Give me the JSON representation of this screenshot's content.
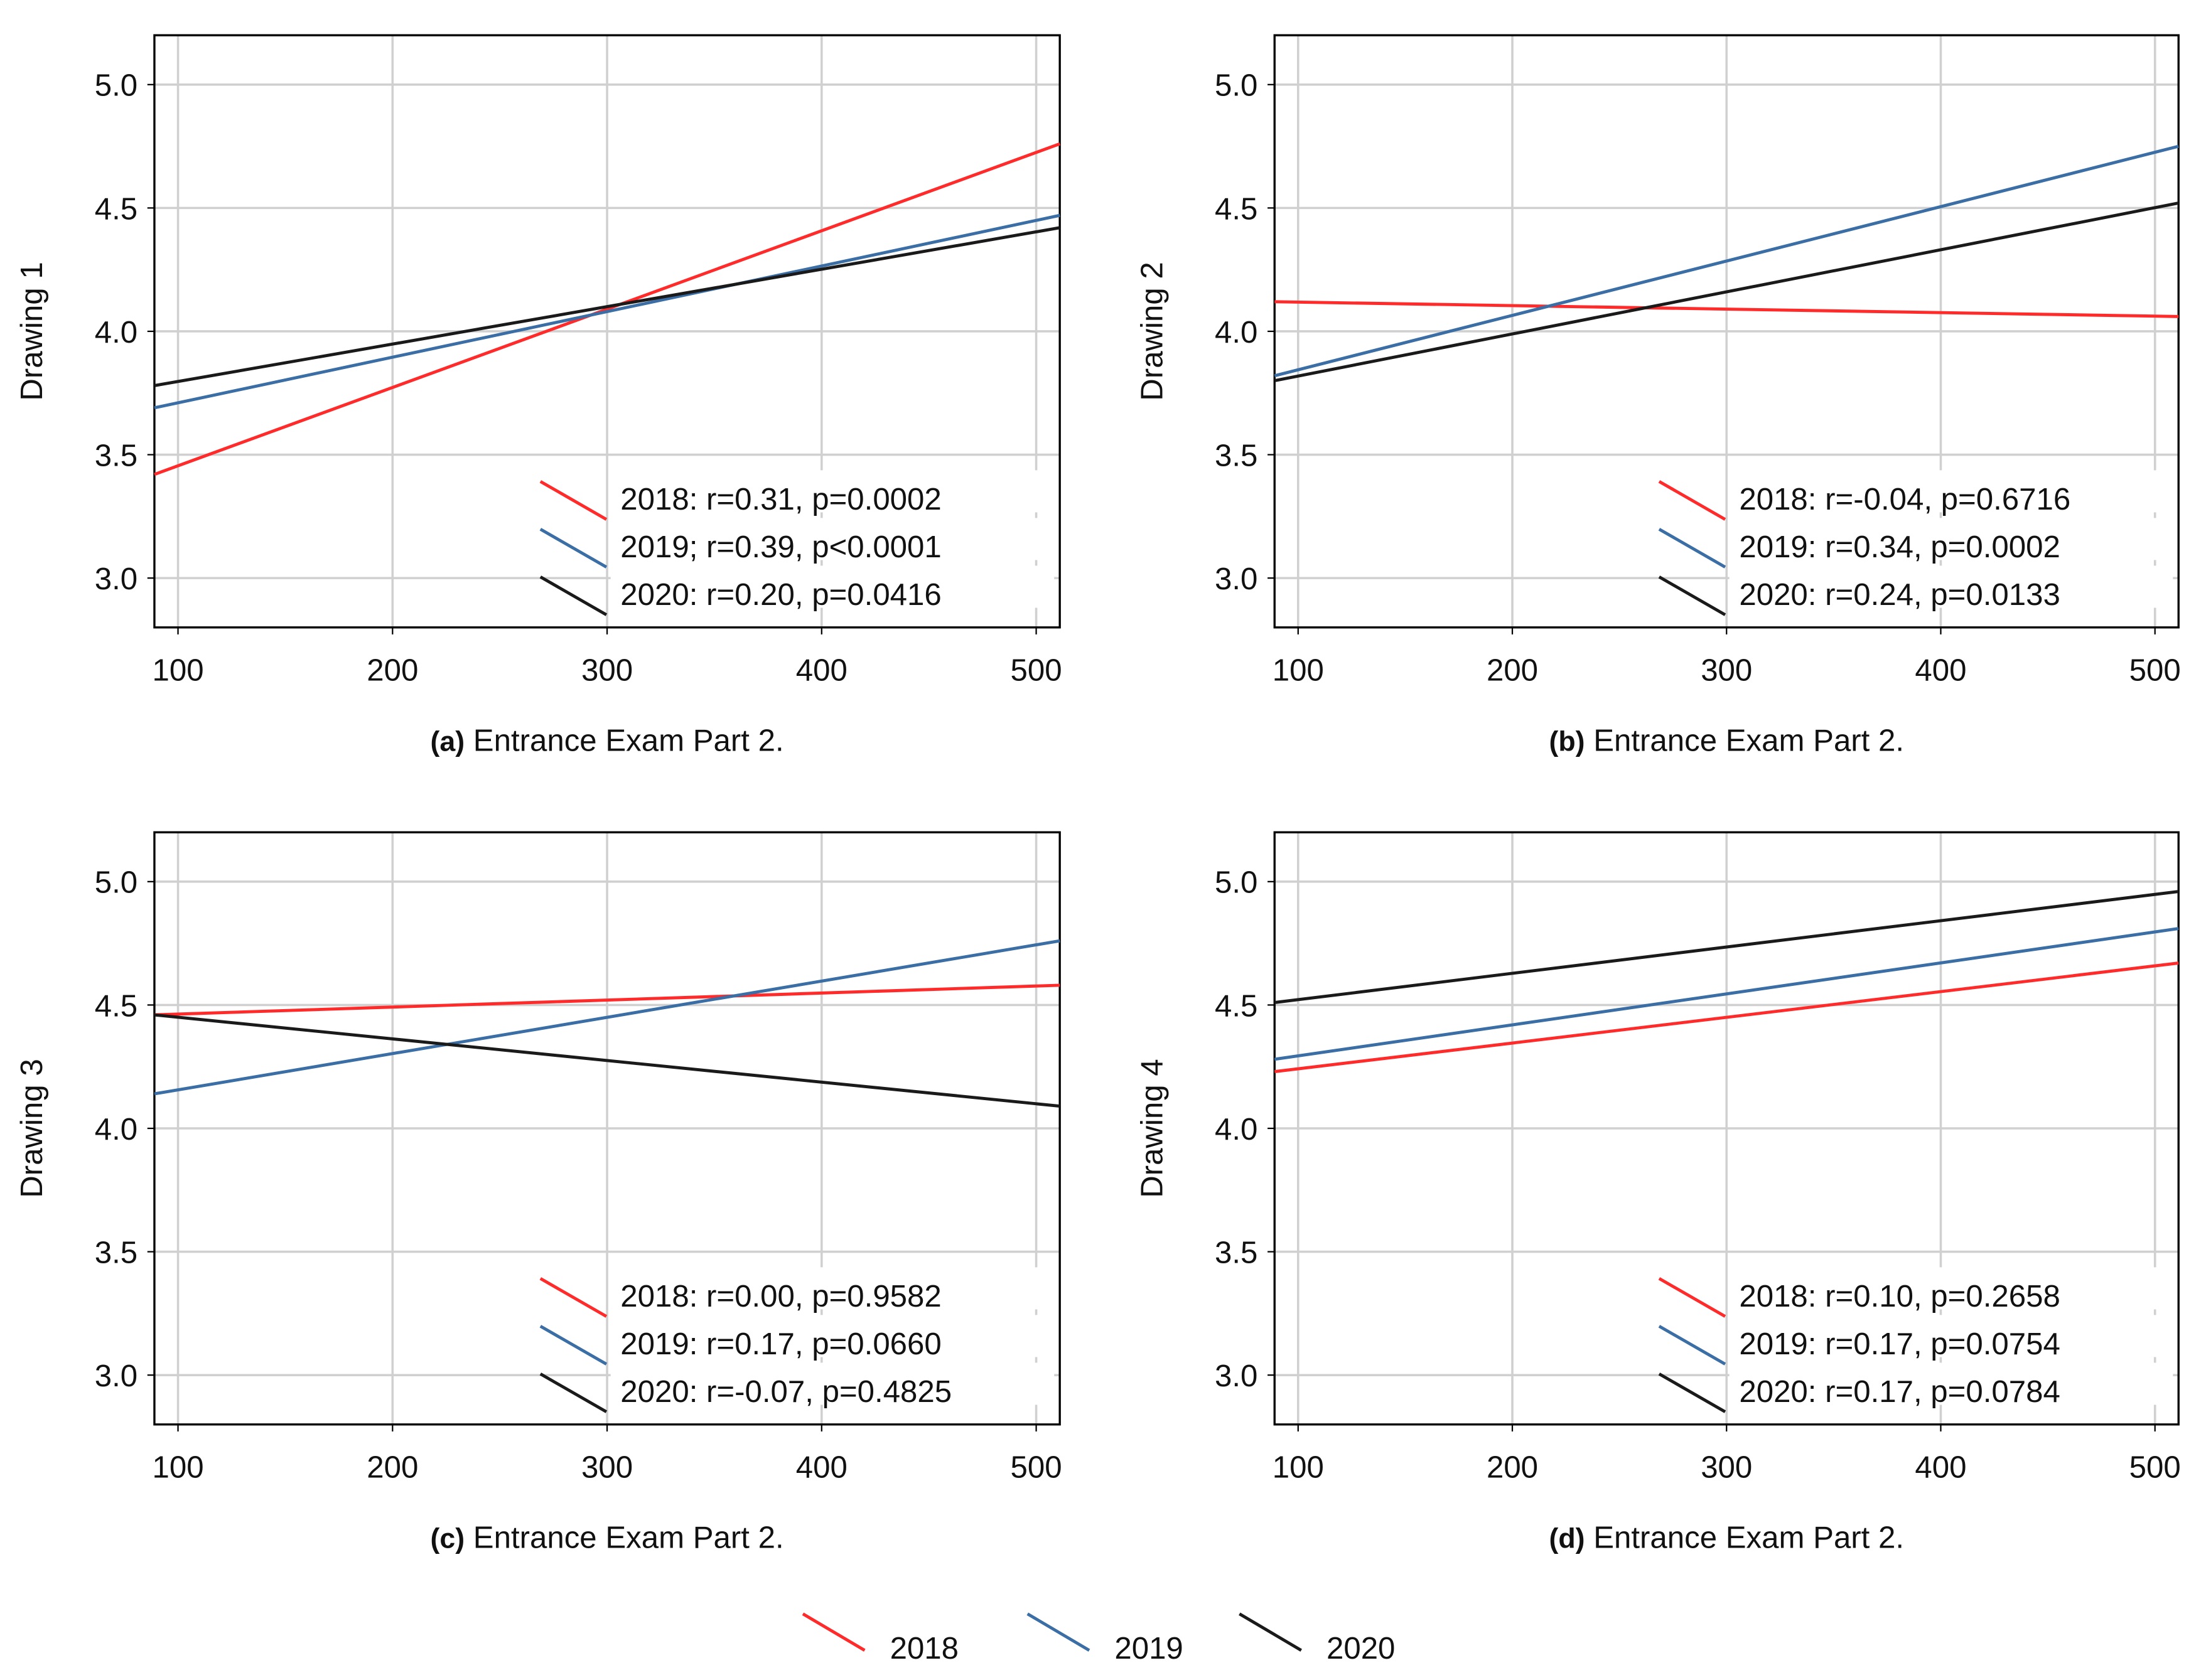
{
  "chart_data": [
    {
      "type": "line",
      "panel_label": "(a)",
      "xlabel": "Entrance Exam Part 2.",
      "ylabel": "Drawing 1",
      "x": [
        89,
        511
      ],
      "xlim": [
        89,
        511
      ],
      "ylim": [
        2.8,
        5.2
      ],
      "xticks": [
        100,
        200,
        300,
        400,
        500
      ],
      "yticks": [
        {
          "value": 3,
          "label": "3.0"
        },
        3.5,
        {
          "value": 4,
          "label": "4.0"
        },
        4.5,
        {
          "value": 5,
          "label": "5.0"
        }
      ],
      "grid": true,
      "legend_position": "lower right",
      "series": [
        {
          "name": "2018: r=0.31, p=0.0002",
          "color": "#ff2a2a",
          "values": [
            3.42,
            4.76
          ]
        },
        {
          "name": "2019; r=0.39, p<0.0001",
          "color": "#3a6ea5",
          "values": [
            3.69,
            4.47
          ]
        },
        {
          "name": "2020: r=0.20, p=0.0416",
          "color": "#1a1a1a",
          "values": [
            3.78,
            4.42
          ]
        }
      ]
    },
    {
      "type": "line",
      "panel_label": "(b)",
      "xlabel": "Entrance Exam Part 2.",
      "ylabel": "Drawing 2",
      "x": [
        89,
        511
      ],
      "xlim": [
        89,
        511
      ],
      "ylim": [
        2.8,
        5.2
      ],
      "xticks": [
        100,
        200,
        300,
        400,
        500
      ],
      "yticks": [
        {
          "value": 3,
          "label": "3.0"
        },
        3.5,
        {
          "value": 4,
          "label": "4.0"
        },
        4.5,
        {
          "value": 5,
          "label": "5.0"
        }
      ],
      "grid": true,
      "legend_position": "lower right",
      "series": [
        {
          "name": "2018: r=-0.04, p=0.6716",
          "color": "#ff2a2a",
          "values": [
            4.12,
            4.06
          ]
        },
        {
          "name": "2019: r=0.34, p=0.0002",
          "color": "#3a6ea5",
          "values": [
            3.82,
            4.75
          ]
        },
        {
          "name": "2020: r=0.24, p=0.0133",
          "color": "#1a1a1a",
          "values": [
            3.8,
            4.52
          ]
        }
      ]
    },
    {
      "type": "line",
      "panel_label": "(c)",
      "xlabel": "Entrance Exam Part 2.",
      "ylabel": "Drawing 3",
      "x": [
        89,
        511
      ],
      "xlim": [
        89,
        511
      ],
      "ylim": [
        2.8,
        5.2
      ],
      "xticks": [
        100,
        200,
        300,
        400,
        500
      ],
      "yticks": [
        {
          "value": 3,
          "label": "3.0"
        },
        3.5,
        {
          "value": 4,
          "label": "4.0"
        },
        4.5,
        {
          "value": 5,
          "label": "5.0"
        }
      ],
      "grid": true,
      "legend_position": "lower right",
      "series": [
        {
          "name": "2018: r=0.00, p=0.9582",
          "color": "#ff2a2a",
          "values": [
            4.46,
            4.58
          ]
        },
        {
          "name": "2019: r=0.17, p=0.0660",
          "color": "#3a6ea5",
          "values": [
            4.14,
            4.76
          ]
        },
        {
          "name": "2020: r=-0.07, p=0.4825",
          "color": "#1a1a1a",
          "values": [
            4.46,
            4.09
          ]
        }
      ]
    },
    {
      "type": "line",
      "panel_label": "(d)",
      "xlabel": "Entrance Exam Part 2.",
      "ylabel": "Drawing 4",
      "x": [
        89,
        511
      ],
      "xlim": [
        89,
        511
      ],
      "ylim": [
        2.8,
        5.2
      ],
      "xticks": [
        100,
        200,
        300,
        400,
        500
      ],
      "yticks": [
        {
          "value": 3,
          "label": "3.0"
        },
        3.5,
        {
          "value": 4,
          "label": "4.0"
        },
        4.5,
        {
          "value": 5,
          "label": "5.0"
        }
      ],
      "grid": true,
      "legend_position": "lower right",
      "series": [
        {
          "name": "2018: r=0.10, p=0.2658",
          "color": "#ff2a2a",
          "values": [
            4.23,
            4.67
          ]
        },
        {
          "name": "2019: r=0.17, p=0.0754",
          "color": "#3a6ea5",
          "values": [
            4.28,
            4.81
          ]
        },
        {
          "name": "2020: r=0.17, p=0.0784",
          "color": "#1a1a1a",
          "values": [
            4.51,
            4.96
          ]
        }
      ]
    }
  ],
  "legend": [
    "2018",
    "2019",
    "2020"
  ]
}
